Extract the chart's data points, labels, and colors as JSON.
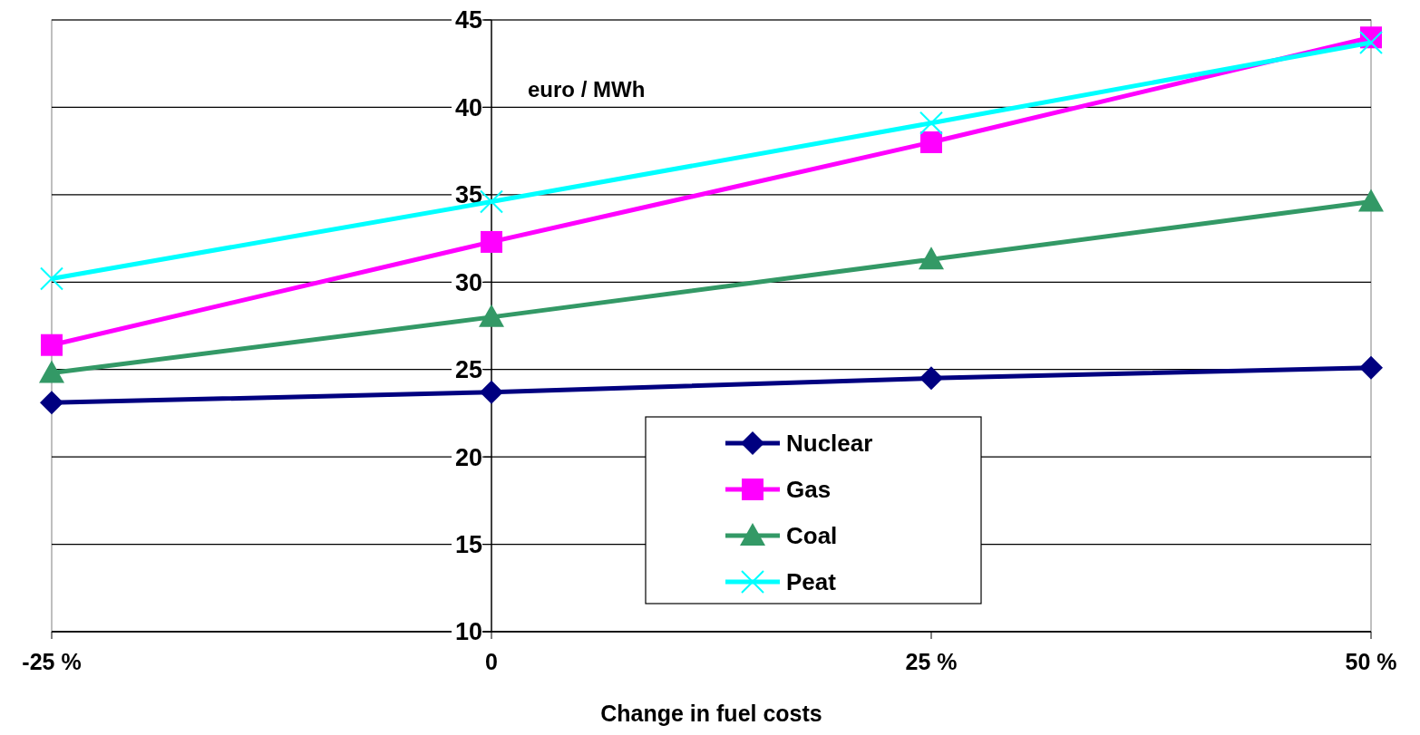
{
  "chart_data": {
    "type": "line",
    "xlabel": "Change in fuel costs",
    "ylabel": "euro / MWh",
    "x": [
      -25,
      0,
      25,
      50
    ],
    "xlim": [
      -25,
      50
    ],
    "xticks": [
      {
        "value": -25,
        "label": "-25 %"
      },
      0,
      {
        "value": 25,
        "label": "25 %"
      },
      {
        "value": 50,
        "label": "50 %"
      }
    ],
    "ylim": [
      10,
      45
    ],
    "yticks": [
      10,
      15,
      20,
      25,
      30,
      35,
      40,
      45
    ],
    "grid": "y",
    "legend": "bottom",
    "series": [
      {
        "name": "Nuclear",
        "color": "#000080",
        "marker": "diamond",
        "values": [
          23.1,
          23.7,
          24.5,
          25.1
        ]
      },
      {
        "name": "Gas",
        "color": "#ff00ff",
        "marker": "square",
        "values": [
          26.4,
          32.3,
          38.0,
          44.0
        ]
      },
      {
        "name": "Coal",
        "color": "#339966",
        "marker": "triangle",
        "values": [
          24.8,
          28.0,
          31.3,
          34.6
        ]
      },
      {
        "name": "Peat",
        "color": "#00ffff",
        "marker": "cross",
        "values": [
          30.2,
          34.6,
          39.1,
          43.7
        ]
      }
    ]
  }
}
